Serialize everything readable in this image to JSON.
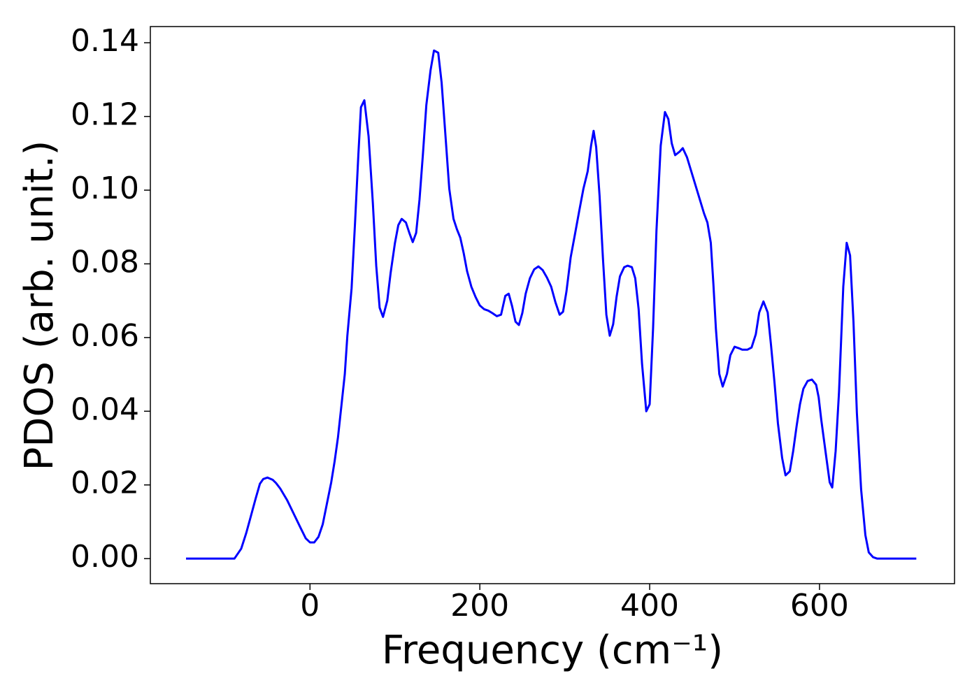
{
  "chart_data": {
    "type": "line",
    "xlabel": "Frequency (cm⁻¹)",
    "ylabel": "PDOS (arb. unit.)",
    "xlim": [
      -188,
      759
    ],
    "ylim": [
      -0.0068,
      0.1444
    ],
    "xticks": [
      0,
      200,
      400,
      600
    ],
    "yticks": [
      {
        "value": 0,
        "label": "0.00"
      },
      0.02,
      0.04,
      0.06,
      0.08,
      {
        "value": 0.1,
        "label": "0.10"
      },
      0.12,
      0.14
    ],
    "series": [
      {
        "color": "#0000ff",
        "x": [
          -146,
          -118,
          -89,
          -81,
          -75,
          -70,
          -64,
          -59,
          -55,
          -50,
          -44,
          -40,
          -35,
          -27,
          -19,
          -11,
          -5,
          0,
          5,
          10,
          15,
          20,
          25,
          29,
          33,
          37,
          41,
          44,
          49,
          53,
          57,
          60,
          64,
          69,
          74,
          78,
          82,
          86,
          91,
          95,
          100,
          104,
          108,
          113,
          117,
          121,
          125,
          129,
          133,
          137,
          142,
          146,
          151,
          155,
          159,
          164,
          169,
          173,
          177,
          181,
          185,
          190,
          195,
          200,
          205,
          210,
          215,
          220,
          225,
          230,
          234,
          238,
          242,
          246,
          250,
          254,
          259,
          264,
          269,
          274,
          279,
          284,
          289,
          294,
          298,
          302,
          307,
          312,
          317,
          322,
          327,
          331,
          334,
          337,
          341,
          345,
          349,
          353,
          357,
          361,
          365,
          370,
          374,
          379,
          383,
          387,
          391,
          396,
          400,
          404,
          408,
          413,
          418,
          422,
          426,
          430,
          435,
          439,
          444,
          449,
          454,
          459,
          464,
          468,
          472,
          475,
          478,
          482,
          486,
          491,
          495,
          500,
          505,
          509,
          515,
          520,
          525,
          529,
          534,
          539,
          543,
          547,
          551,
          556,
          560,
          565,
          569,
          573,
          577,
          581,
          586,
          591,
          596,
          599,
          602,
          607,
          612,
          615,
          619,
          623,
          628,
          632,
          636,
          640,
          644,
          649,
          654,
          658,
          663,
          668,
          714
        ],
        "values": [
          0,
          0,
          0,
          0.0027,
          0.007,
          0.0112,
          0.0163,
          0.0203,
          0.0216,
          0.022,
          0.0214,
          0.0205,
          0.019,
          0.0159,
          0.0121,
          0.0083,
          0.0055,
          0.0044,
          0.0044,
          0.0059,
          0.0093,
          0.015,
          0.0207,
          0.0264,
          0.033,
          0.0415,
          0.0501,
          0.0605,
          0.0734,
          0.0909,
          0.1098,
          0.1225,
          0.1244,
          0.1146,
          0.0966,
          0.0795,
          0.0681,
          0.0656,
          0.07,
          0.0776,
          0.0856,
          0.0905,
          0.0922,
          0.0912,
          0.0884,
          0.0859,
          0.0884,
          0.0975,
          0.1098,
          0.1231,
          0.1326,
          0.1379,
          0.1373,
          0.1292,
          0.1165,
          0.1004,
          0.0922,
          0.0894,
          0.0871,
          0.0829,
          0.078,
          0.0738,
          0.071,
          0.0687,
          0.0677,
          0.0673,
          0.0666,
          0.0658,
          0.0662,
          0.0713,
          0.0719,
          0.0685,
          0.0643,
          0.0634,
          0.0666,
          0.0719,
          0.0761,
          0.0785,
          0.0793,
          0.0783,
          0.0763,
          0.0738,
          0.0696,
          0.0662,
          0.067,
          0.0725,
          0.0818,
          0.088,
          0.0943,
          0.1004,
          0.1051,
          0.1121,
          0.1161,
          0.1117,
          0.0985,
          0.0814,
          0.0662,
          0.0605,
          0.0636,
          0.071,
          0.0766,
          0.0791,
          0.0795,
          0.0791,
          0.0761,
          0.0677,
          0.0529,
          0.04,
          0.0419,
          0.0624,
          0.089,
          0.1121,
          0.1212,
          0.1193,
          0.1127,
          0.1095,
          0.1104,
          0.1114,
          0.1089,
          0.1051,
          0.1013,
          0.0975,
          0.0937,
          0.0912,
          0.0857,
          0.0747,
          0.0624,
          0.0501,
          0.0467,
          0.0501,
          0.0552,
          0.0575,
          0.0571,
          0.0567,
          0.0567,
          0.0573,
          0.0609,
          0.0668,
          0.0698,
          0.0668,
          0.0577,
          0.0478,
          0.0368,
          0.0273,
          0.0226,
          0.0237,
          0.0292,
          0.0359,
          0.0419,
          0.0461,
          0.0482,
          0.0486,
          0.0472,
          0.0438,
          0.0378,
          0.0292,
          0.0207,
          0.0193,
          0.0292,
          0.0453,
          0.0738,
          0.0857,
          0.0823,
          0.0643,
          0.0396,
          0.0188,
          0.0064,
          0.0017,
          0.0004,
          0,
          0
        ]
      }
    ]
  }
}
